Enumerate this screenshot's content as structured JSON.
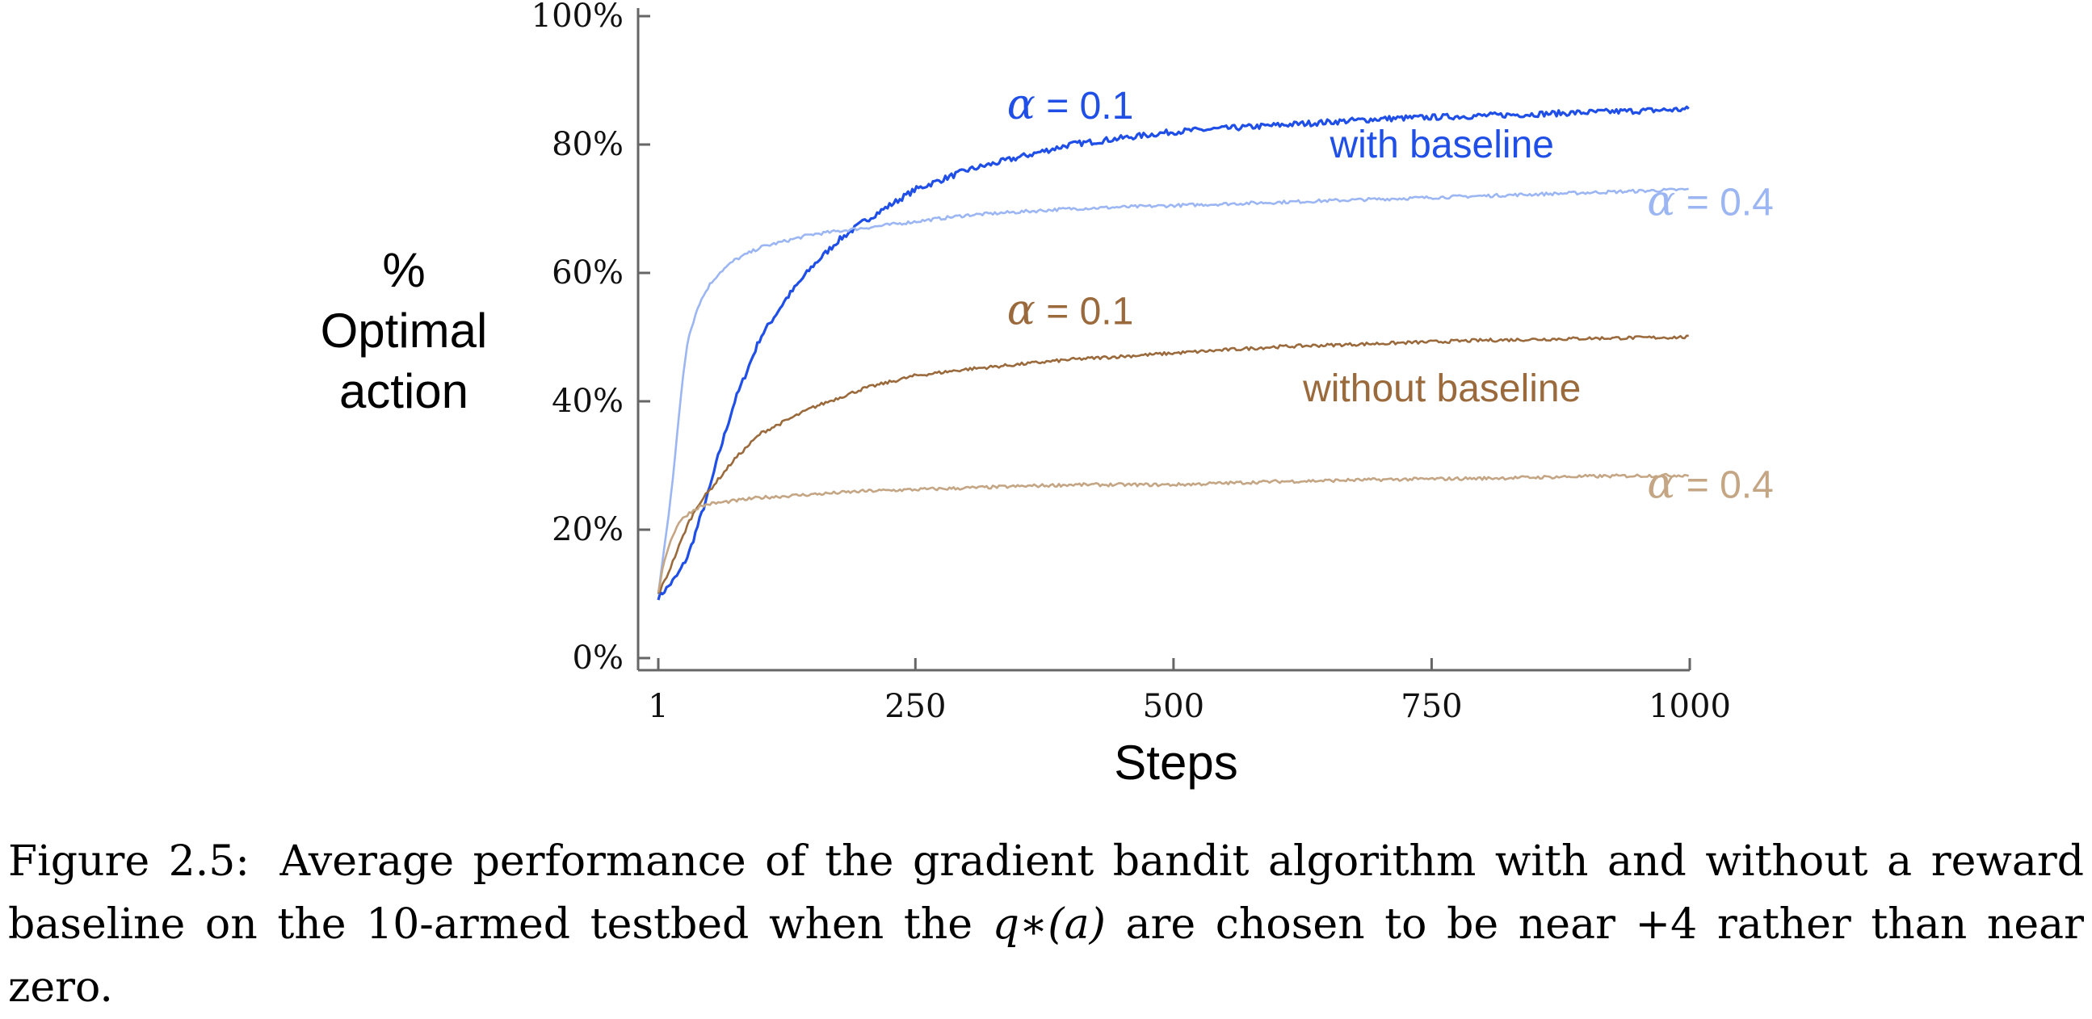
{
  "chart_data": {
    "type": "line",
    "title": "",
    "xlabel": "Steps",
    "ylabel": [
      "%",
      "Optimal",
      "action"
    ],
    "xlim": [
      1,
      1000
    ],
    "ylim": [
      0,
      100
    ],
    "x_ticks": [
      1,
      250,
      500,
      750,
      1000
    ],
    "x_tick_labels": [
      "1",
      "250",
      "500",
      "750",
      "1000"
    ],
    "y_ticks": [
      0,
      20,
      40,
      60,
      80,
      100
    ],
    "y_tick_labels": [
      "0%",
      "20%",
      "40%",
      "60%",
      "80%",
      "100%"
    ],
    "grid": false,
    "legend": "none",
    "series": [
      {
        "color": "#1f4fe6",
        "x": [
          1,
          10,
          20,
          30,
          40,
          50,
          60,
          75,
          100,
          125,
          150,
          175,
          200,
          250,
          300,
          350,
          400,
          500,
          600,
          700,
          800,
          900,
          1000
        ],
        "y": [
          9.5,
          11,
          13,
          16,
          21,
          26,
          32,
          40,
          50,
          56,
          61,
          65,
          68,
          73,
          76,
          78,
          80,
          82,
          83,
          84,
          84.5,
          85,
          85.5
        ]
      },
      {
        "color": "#9bb6f2",
        "x": [
          1,
          5,
          10,
          15,
          20,
          25,
          30,
          40,
          50,
          60,
          75,
          100,
          125,
          150,
          175,
          200,
          250,
          300,
          400,
          500,
          600,
          700,
          800,
          900,
          1000
        ],
        "y": [
          10,
          15,
          21,
          28,
          36,
          44,
          50,
          55,
          58,
          60,
          62,
          64,
          65,
          66,
          66.5,
          67,
          68,
          69,
          70,
          70.5,
          71,
          71.5,
          72,
          72.5,
          73
        ]
      },
      {
        "color": "#9b6a3c",
        "x": [
          1,
          10,
          20,
          30,
          40,
          50,
          60,
          75,
          100,
          125,
          150,
          200,
          250,
          300,
          400,
          500,
          600,
          700,
          800,
          900,
          1000
        ],
        "y": [
          10,
          13,
          17,
          21,
          24,
          26,
          28,
          31,
          35,
          37,
          39,
          42,
          44,
          45,
          46.5,
          47.5,
          48.5,
          49,
          49.5,
          49.8,
          50
        ]
      },
      {
        "color": "#c4a584",
        "x": [
          1,
          5,
          10,
          15,
          20,
          30,
          40,
          50,
          75,
          100,
          150,
          200,
          300,
          400,
          500,
          600,
          700,
          800,
          900,
          1000
        ],
        "y": [
          10,
          14,
          17,
          19,
          21,
          22.5,
          23.5,
          24,
          24.5,
          25,
          25.5,
          26,
          26.5,
          27,
          27,
          27.5,
          27.8,
          28,
          28.3,
          28.5
        ]
      }
    ],
    "annotations": [
      {
        "text": "α = 0.1",
        "color": "#1f4fe6",
        "x": 400,
        "y": 84
      },
      {
        "text": "with baseline",
        "color": "#1f4fe6",
        "x": 760,
        "y": 78
      },
      {
        "text": "α = 0.4",
        "color": "#9bb6f2",
        "x": 1020,
        "y": 69
      },
      {
        "text": "α = 0.1",
        "color": "#9b6a3c",
        "x": 400,
        "y": 52
      },
      {
        "text": "without baseline",
        "color": "#9b6a3c",
        "x": 760,
        "y": 40
      },
      {
        "text": "α = 0.4",
        "color": "#c4a584",
        "x": 1020,
        "y": 25
      }
    ]
  },
  "caption": {
    "label": "Figure 2.5:",
    "text_before_math": "Average performance of the gradient bandit algorithm with and without a reward baseline on the 10-armed testbed when the ",
    "math": "q∗(a)",
    "text_after_math": " are chosen to be near +4 rather than near zero."
  }
}
